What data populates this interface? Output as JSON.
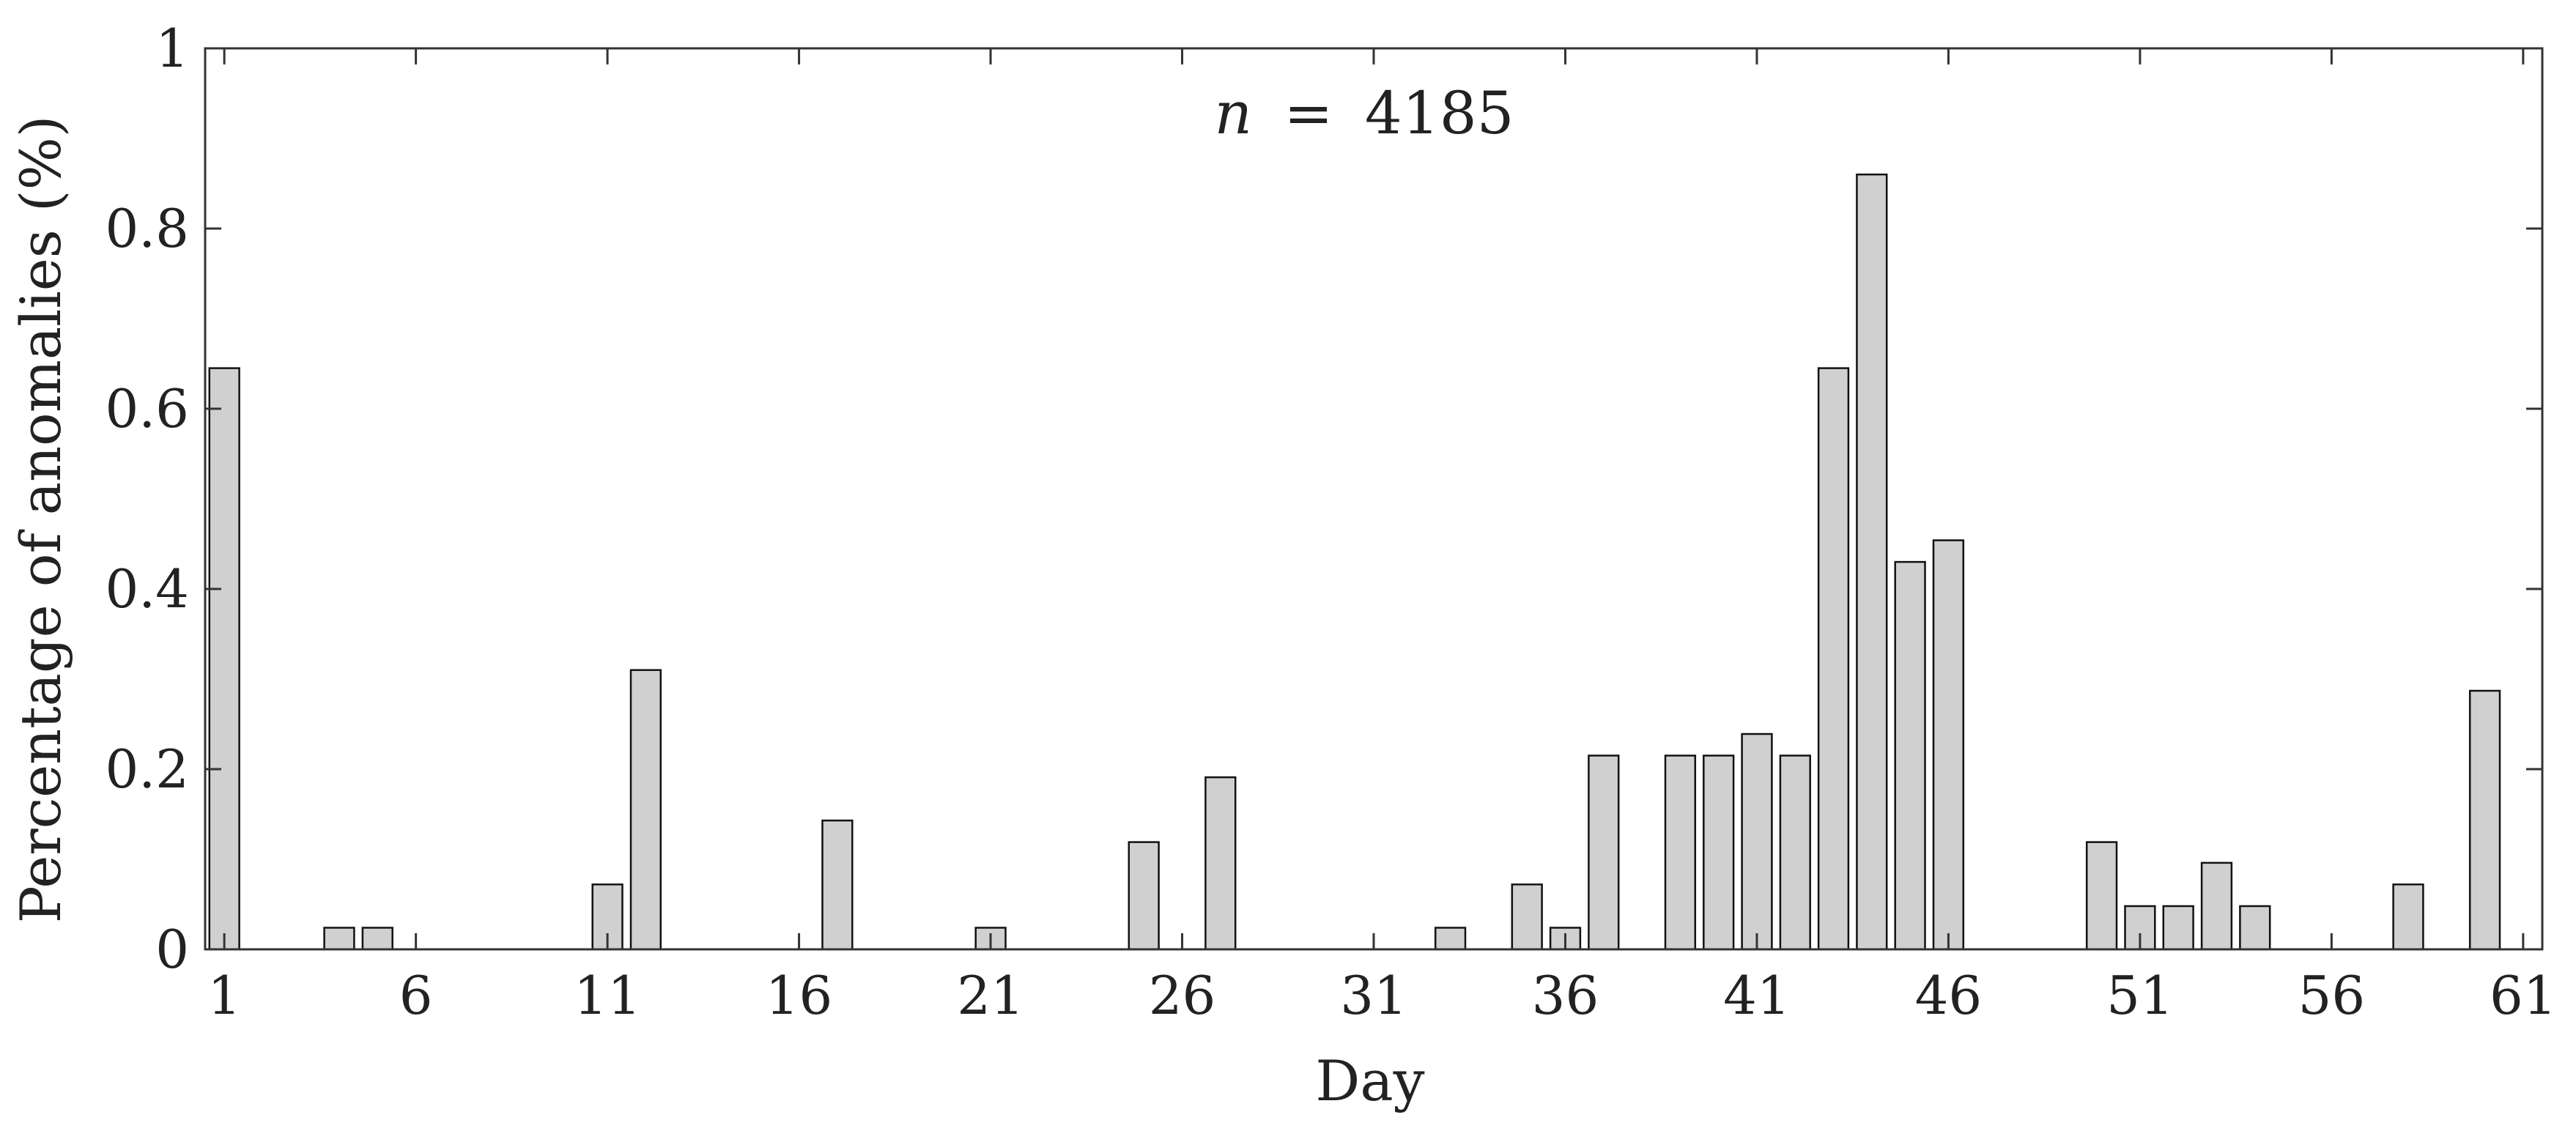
{
  "chart_data": {
    "type": "bar",
    "annotation": {
      "symbol": "n",
      "equals": "=",
      "value": "4185"
    },
    "xlabel": "Day",
    "ylabel": "Percentage of anomalies (%)",
    "xlim": [
      0.5,
      61.5
    ],
    "ylim": [
      0,
      1
    ],
    "xticks": [
      1,
      6,
      11,
      16,
      21,
      26,
      31,
      36,
      41,
      46,
      51,
      56,
      61
    ],
    "yticks": [
      0,
      0.2,
      0.4,
      0.6,
      0.8,
      1
    ],
    "ytick_labels": [
      "0",
      "0.2",
      "0.4",
      "0.6",
      "0.8",
      "1"
    ],
    "grid": false,
    "bar_color": "#d0d0d0",
    "edge_color": "#111111",
    "x": [
      1,
      4,
      5,
      11,
      12,
      17,
      21,
      25,
      27,
      33,
      35,
      36,
      37,
      39,
      40,
      41,
      42,
      43,
      44,
      45,
      46,
      50,
      51,
      52,
      53,
      54,
      58,
      60
    ],
    "values": [
      0.645,
      0.024,
      0.024,
      0.072,
      0.31,
      0.143,
      0.024,
      0.119,
      0.191,
      0.024,
      0.072,
      0.024,
      0.215,
      0.215,
      0.215,
      0.239,
      0.215,
      0.645,
      0.86,
      0.43,
      0.454,
      0.119,
      0.048,
      0.048,
      0.096,
      0.048,
      0.072,
      0.287
    ]
  }
}
